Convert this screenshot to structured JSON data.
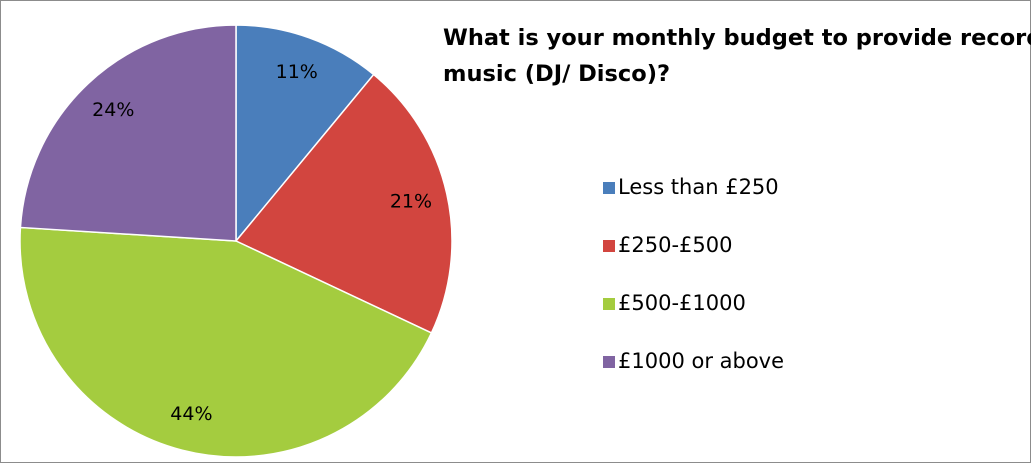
{
  "chart_data": {
    "type": "pie",
    "title": "What is your monthly budget to provide recorded music (DJ/ Disco)?",
    "categories": [
      "Less than £250",
      "£250-£500",
      "£500-£1000",
      "£1000 or above"
    ],
    "values": [
      11,
      21,
      44,
      24
    ],
    "value_labels": [
      "11%",
      "21%",
      "44%",
      "24%"
    ],
    "colors": [
      "#4a7ebb",
      "#d2453f",
      "#a4cc3f",
      "#8064a2"
    ],
    "legend": "right"
  }
}
